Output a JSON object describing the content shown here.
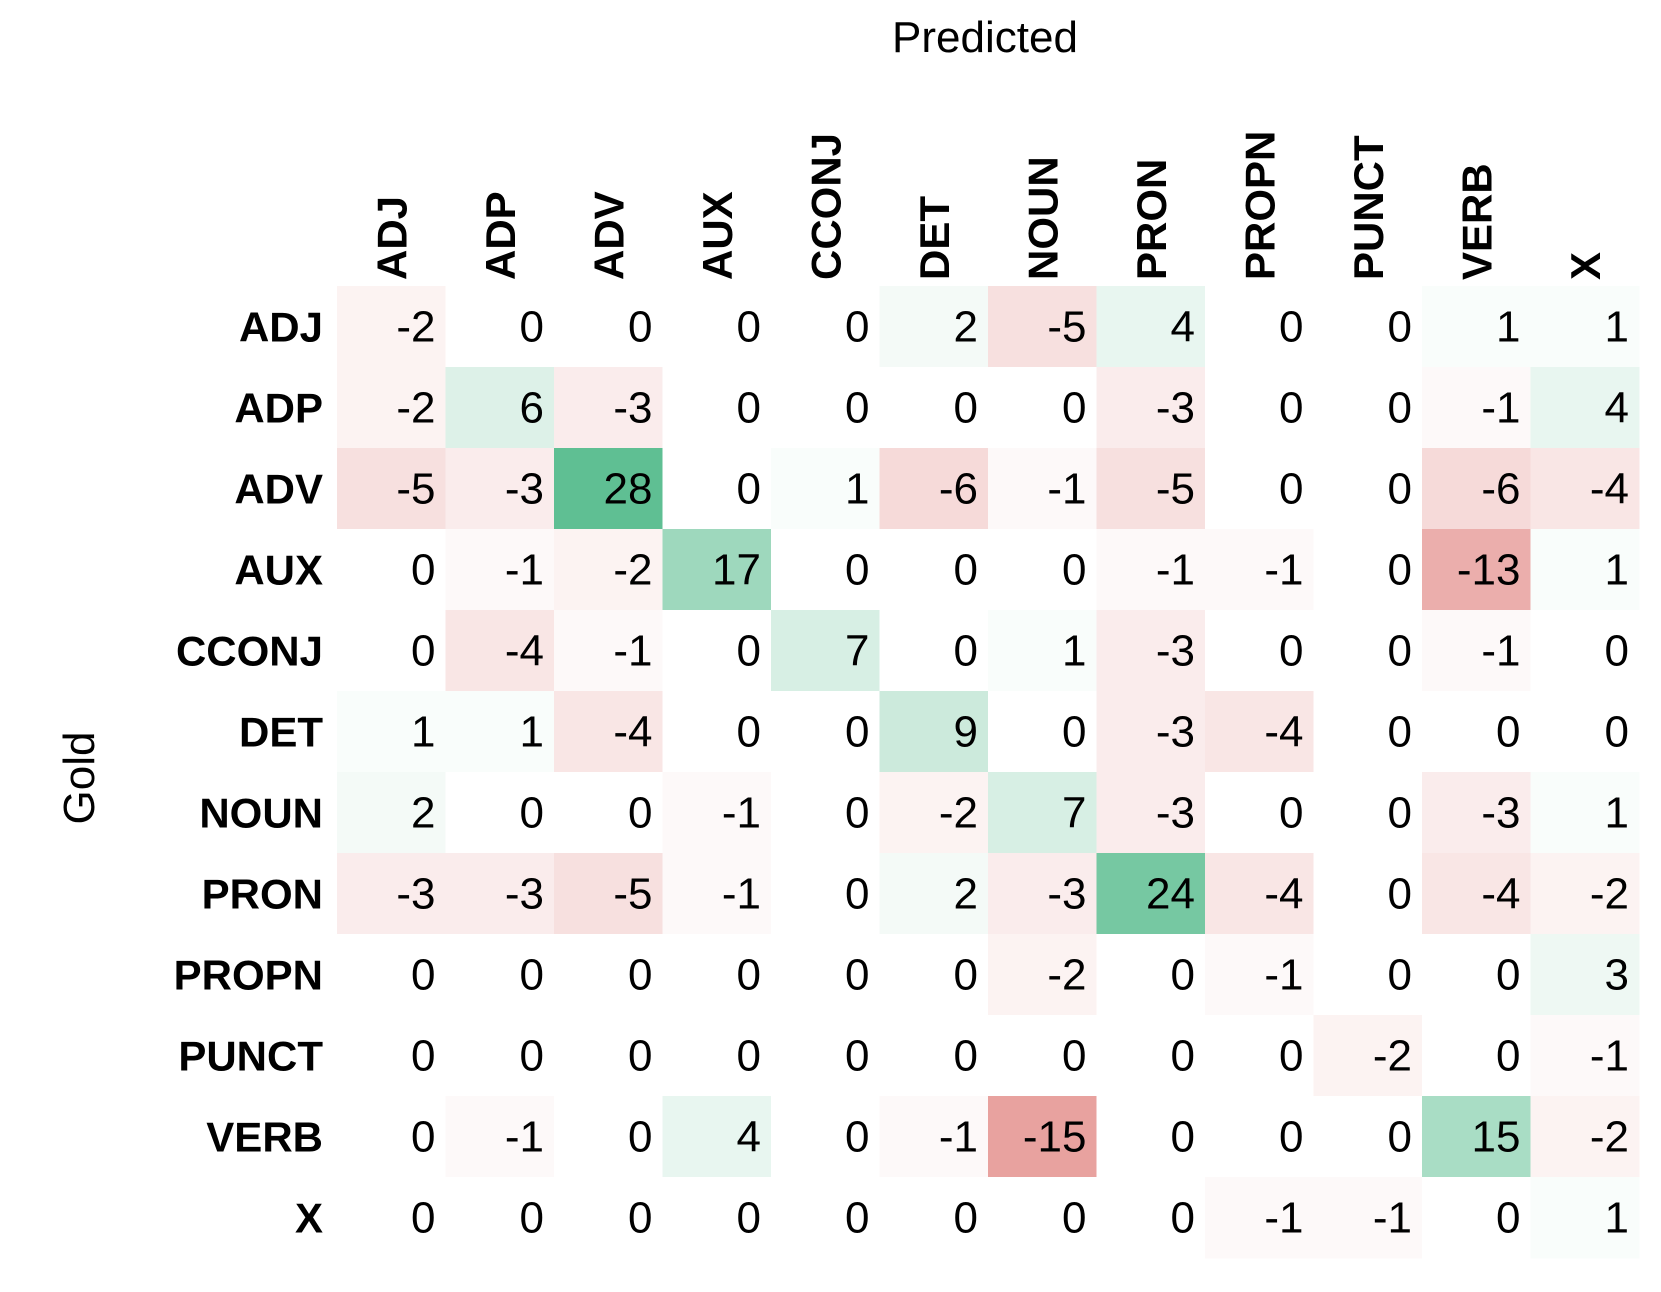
{
  "chart_data": {
    "type": "heatmap",
    "title": "",
    "xlabel": "Predicted",
    "ylabel": "Gold",
    "x_categories": [
      "ADJ",
      "ADP",
      "ADV",
      "AUX",
      "CCONJ",
      "DET",
      "NOUN",
      "PRON",
      "PROPN",
      "PUNCT",
      "VERB",
      "X"
    ],
    "y_categories": [
      "ADJ",
      "ADP",
      "ADV",
      "AUX",
      "CCONJ",
      "DET",
      "NOUN",
      "PRON",
      "PROPN",
      "PUNCT",
      "VERB",
      "X"
    ],
    "values": [
      [
        -2,
        0,
        0,
        0,
        0,
        2,
        -5,
        4,
        0,
        0,
        1,
        1
      ],
      [
        -2,
        6,
        -3,
        0,
        0,
        0,
        0,
        -3,
        0,
        0,
        -1,
        4
      ],
      [
        -5,
        -3,
        28,
        0,
        1,
        -6,
        -1,
        -5,
        0,
        0,
        -6,
        -4
      ],
      [
        0,
        -1,
        -2,
        17,
        0,
        0,
        0,
        -1,
        -1,
        0,
        -13,
        1
      ],
      [
        0,
        -4,
        -1,
        0,
        7,
        0,
        1,
        -3,
        0,
        0,
        -1,
        0
      ],
      [
        1,
        1,
        -4,
        0,
        0,
        9,
        0,
        -3,
        -4,
        0,
        0,
        0
      ],
      [
        2,
        0,
        0,
        -1,
        0,
        -2,
        7,
        -3,
        0,
        0,
        -3,
        1
      ],
      [
        -3,
        -3,
        -5,
        -1,
        0,
        2,
        -3,
        24,
        -4,
        0,
        -4,
        -2
      ],
      [
        0,
        0,
        0,
        0,
        0,
        0,
        -2,
        0,
        -1,
        0,
        0,
        3
      ],
      [
        0,
        0,
        0,
        0,
        0,
        0,
        0,
        0,
        0,
        -2,
        0,
        -1
      ],
      [
        0,
        -1,
        0,
        4,
        0,
        -1,
        -15,
        0,
        0,
        0,
        15,
        -2
      ],
      [
        0,
        0,
        0,
        0,
        0,
        0,
        0,
        0,
        -1,
        -1,
        0,
        1
      ]
    ],
    "colormap": {
      "negative": "#e8a29f",
      "neutral": "#ffffff",
      "positive": "#5fbf93",
      "vmax": 28
    },
    "x_tick_rotation": "vertical",
    "grid": false,
    "legend": "none"
  }
}
